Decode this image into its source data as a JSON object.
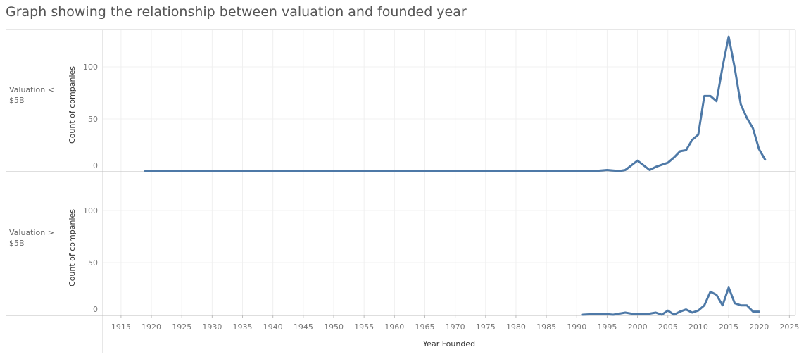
{
  "title": "Graph showing the relationship between valuation and founded year",
  "chart_data": {
    "type": "line",
    "xlabel": "Year Founded",
    "ylabel": "Count of companies",
    "xlim": [
      1912,
      2026
    ],
    "ylim": [
      0,
      135
    ],
    "x_ticks": [
      1915,
      1920,
      1925,
      1930,
      1935,
      1940,
      1945,
      1950,
      1955,
      1960,
      1965,
      1970,
      1975,
      1980,
      1985,
      1990,
      1995,
      2000,
      2005,
      2010,
      2015,
      2020,
      2025
    ],
    "y_ticks": [
      0,
      50,
      100
    ],
    "line_color": "#4e79a7",
    "panels": [
      {
        "row_label_lines": [
          "Valuation <",
          "$5B"
        ],
        "series": [
          {
            "x": [
              1919,
              1993,
              1995,
              1997,
              1998,
              2000,
              2002,
              2003,
              2004,
              2005,
              2006,
              2007,
              2008,
              2009,
              2010,
              2011,
              2012,
              2013,
              2014,
              2015,
              2016,
              2017,
              2018,
              2019,
              2020,
              2021
            ],
            "y": [
              0,
              0,
              1,
              0,
              1,
              10,
              1,
              4,
              6,
              8,
              13,
              19,
              20,
              30,
              35,
              72,
              72,
              67,
              100,
              129,
              99,
              64,
              51,
              41,
              21,
              11
            ]
          }
        ]
      },
      {
        "row_label_lines": [
          "Valuation >",
          "$5B"
        ],
        "series": [
          {
            "x": [
              1991,
              1994,
              1996,
              1997,
              1998,
              1999,
              2000,
              2001,
              2002,
              2003,
              2004,
              2005,
              2006,
              2007,
              2008,
              2009,
              2010,
              2011,
              2012,
              2013,
              2014,
              2015,
              2016,
              2017,
              2018,
              2019,
              2020
            ],
            "y": [
              0,
              1,
              0,
              1,
              2,
              1,
              1,
              1,
              1,
              2,
              0,
              4,
              0,
              3,
              5,
              2,
              4,
              9,
              22,
              19,
              9,
              26,
              11,
              9,
              9,
              3,
              3
            ]
          }
        ]
      }
    ]
  }
}
